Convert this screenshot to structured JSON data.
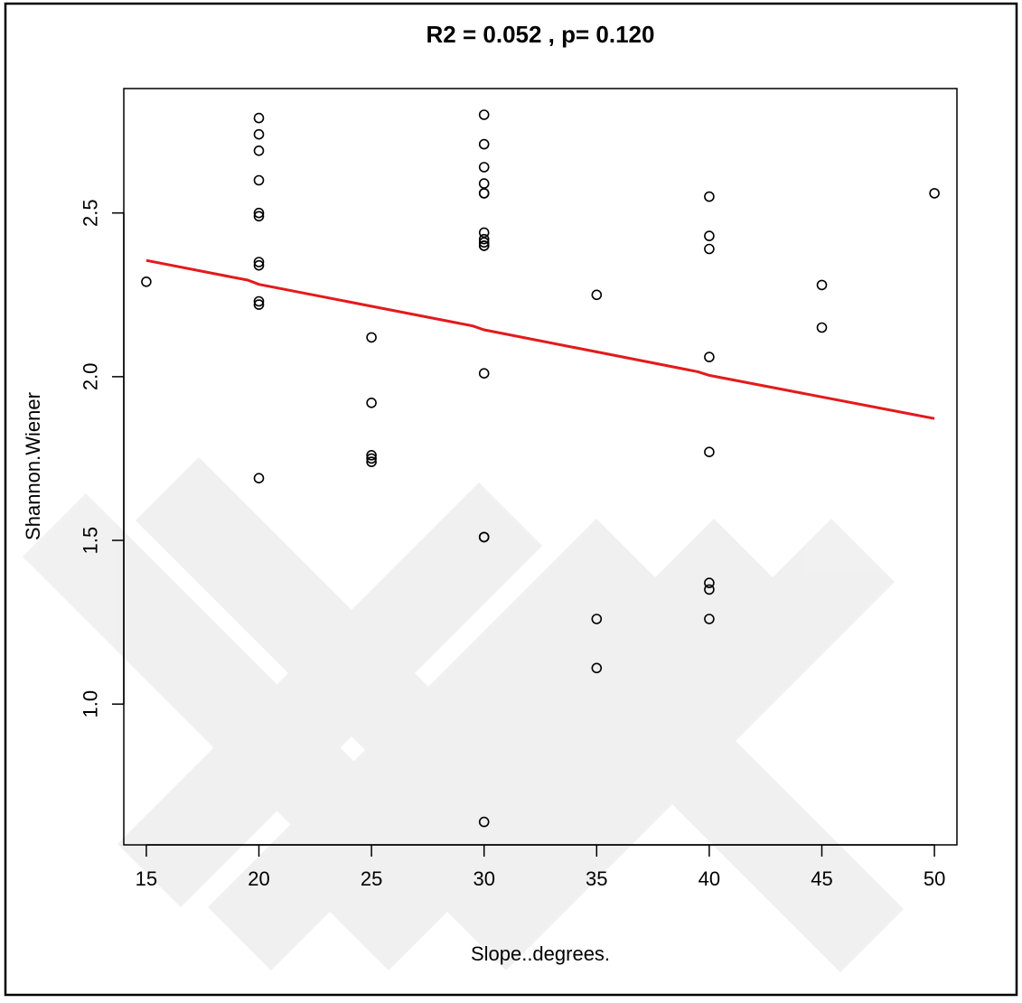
{
  "chart_data": {
    "type": "scatter",
    "title": "R2 = 0.052 , p= 0.120",
    "xlabel": "Slope..degrees.",
    "ylabel": "Shannon.Wiener",
    "xlim": [
      14,
      51
    ],
    "ylim": [
      0.57,
      2.88
    ],
    "xticks": [
      15,
      20,
      25,
      30,
      35,
      40,
      45,
      50
    ],
    "xtick_labels": [
      "15",
      "20",
      "25",
      "30",
      "35",
      "40",
      "45",
      "50"
    ],
    "yticks": [
      1.0,
      1.5,
      2.0,
      2.5
    ],
    "ytick_labels": [
      "1.0",
      "1.5",
      "2.0",
      "2.5"
    ],
    "grid": false,
    "points": [
      {
        "x": 15,
        "y": 2.29
      },
      {
        "x": 20,
        "y": 2.79
      },
      {
        "x": 20,
        "y": 2.74
      },
      {
        "x": 20,
        "y": 2.69
      },
      {
        "x": 20,
        "y": 2.6
      },
      {
        "x": 20,
        "y": 2.5
      },
      {
        "x": 20,
        "y": 2.49
      },
      {
        "x": 20,
        "y": 2.35
      },
      {
        "x": 20,
        "y": 2.34
      },
      {
        "x": 20,
        "y": 2.23
      },
      {
        "x": 20,
        "y": 2.22
      },
      {
        "x": 20,
        "y": 1.69
      },
      {
        "x": 25,
        "y": 2.12
      },
      {
        "x": 25,
        "y": 1.92
      },
      {
        "x": 25,
        "y": 1.76
      },
      {
        "x": 25,
        "y": 1.75
      },
      {
        "x": 25,
        "y": 1.74
      },
      {
        "x": 30,
        "y": 2.8
      },
      {
        "x": 30,
        "y": 2.71
      },
      {
        "x": 30,
        "y": 2.64
      },
      {
        "x": 30,
        "y": 2.59
      },
      {
        "x": 30,
        "y": 2.56
      },
      {
        "x": 30,
        "y": 2.56
      },
      {
        "x": 30,
        "y": 2.44
      },
      {
        "x": 30,
        "y": 2.42
      },
      {
        "x": 30,
        "y": 2.41
      },
      {
        "x": 30,
        "y": 2.4
      },
      {
        "x": 30,
        "y": 2.4
      },
      {
        "x": 30,
        "y": 2.01
      },
      {
        "x": 30,
        "y": 1.51
      },
      {
        "x": 30,
        "y": 1.51
      },
      {
        "x": 30,
        "y": 0.64
      },
      {
        "x": 35,
        "y": 2.25
      },
      {
        "x": 35,
        "y": 1.26
      },
      {
        "x": 35,
        "y": 1.11
      },
      {
        "x": 40,
        "y": 2.55
      },
      {
        "x": 40,
        "y": 2.43
      },
      {
        "x": 40,
        "y": 2.39
      },
      {
        "x": 40,
        "y": 2.06
      },
      {
        "x": 40,
        "y": 1.77
      },
      {
        "x": 40,
        "y": 1.37
      },
      {
        "x": 40,
        "y": 1.35
      },
      {
        "x": 40,
        "y": 1.26
      },
      {
        "x": 45,
        "y": 2.28
      },
      {
        "x": 45,
        "y": 2.15
      },
      {
        "x": 50,
        "y": 2.56
      }
    ],
    "fit_line": {
      "color": "#e31a1c",
      "points": [
        {
          "x": 15,
          "y": 2.355
        },
        {
          "x": 19.5,
          "y": 2.295
        },
        {
          "x": 20,
          "y": 2.282
        },
        {
          "x": 29.5,
          "y": 2.155
        },
        {
          "x": 30,
          "y": 2.143
        },
        {
          "x": 39.5,
          "y": 2.015
        },
        {
          "x": 40,
          "y": 2.004
        },
        {
          "x": 50,
          "y": 1.872
        }
      ]
    },
    "marker": "open-circle",
    "marker_color": "#000000"
  }
}
